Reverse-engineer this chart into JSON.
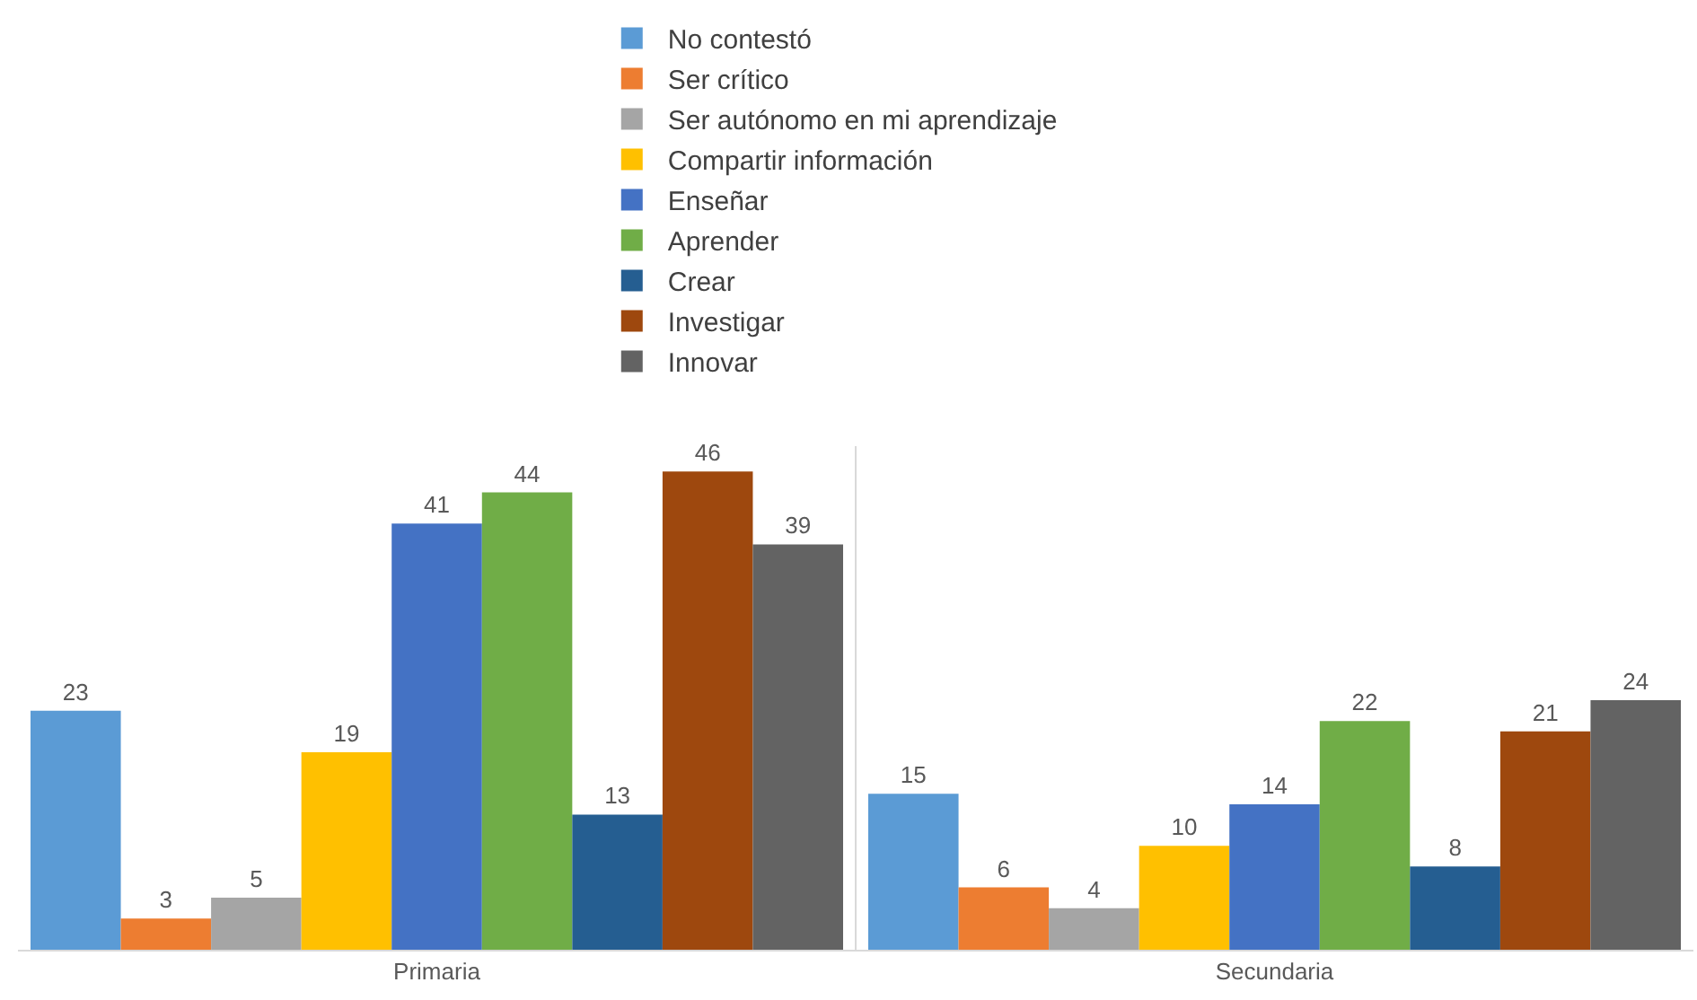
{
  "chart_data": {
    "type": "bar",
    "categories": [
      "Primaria",
      "Secundaria"
    ],
    "series": [
      {
        "name": "No contestó",
        "color": "#5b9bd5",
        "values": [
          23,
          15
        ]
      },
      {
        "name": "Ser crítico",
        "color": "#ed7d31",
        "values": [
          3,
          6
        ]
      },
      {
        "name": "Ser autónomo en mi aprendizaje",
        "color": "#a5a5a5",
        "values": [
          5,
          4
        ]
      },
      {
        "name": "Compartir información",
        "color": "#ffc000",
        "values": [
          19,
          10
        ]
      },
      {
        "name": "Enseñar",
        "color": "#4472c4",
        "values": [
          41,
          14
        ]
      },
      {
        "name": "Aprender",
        "color": "#70ad47",
        "values": [
          44,
          22
        ]
      },
      {
        "name": "Crear",
        "color": "#255e91",
        "values": [
          13,
          8
        ]
      },
      {
        "name": "Investigar",
        "color": "#9e480e",
        "values": [
          46,
          21
        ]
      },
      {
        "name": "Innovar",
        "color": "#636363",
        "values": [
          39,
          24
        ]
      }
    ],
    "data_labels": true,
    "grid": "x",
    "legend": "top"
  }
}
